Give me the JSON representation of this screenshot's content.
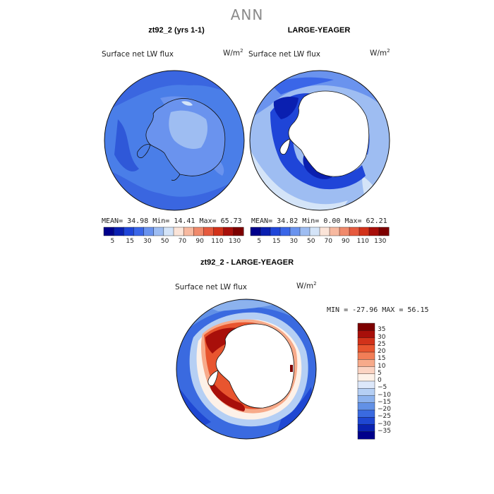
{
  "title": "ANN",
  "panels": [
    {
      "id": "left",
      "title": "zt92_2 (yrs 1-1)",
      "field_label": "Surface net LW flux",
      "units_base": "W/m",
      "units_sup": "2",
      "stats": "MEAN=  34.98  Min=  14.41  Max=  65.73"
    },
    {
      "id": "right",
      "title": "LARGE-YEAGER",
      "field_label": "Surface net LW flux",
      "units_base": "W/m",
      "units_sup": "2",
      "stats": "MEAN=  34.82  Min=   0.00  Max=  62.21"
    },
    {
      "id": "diff",
      "title": "zt92_2 - LARGE-YEAGER",
      "field_label": "Surface net LW flux",
      "units_base": "W/m",
      "units_sup": "2",
      "stats": "MIN = -27.96 MAX =  56.15"
    }
  ],
  "colorbar_top": {
    "colors": [
      "#00008b",
      "#0a1fb0",
      "#1f45d8",
      "#3a66e8",
      "#6a93ee",
      "#9ebdf2",
      "#d4e4f8",
      "#fbe4d8",
      "#f7b9a0",
      "#f08a6c",
      "#e65a3e",
      "#d2321a",
      "#a80f0a",
      "#7d0000"
    ],
    "ticks": [
      "5",
      "15",
      "30",
      "50",
      "70",
      "90",
      "110",
      "130"
    ]
  },
  "colorbar_diff": {
    "colors": [
      "#7d0000",
      "#a80f0a",
      "#d2321a",
      "#e8552f",
      "#f27e57",
      "#f7aa8a",
      "#fbd3c2",
      "#fdf1e8",
      "#dde8fa",
      "#b5cff4",
      "#8cb2ee",
      "#6291e6",
      "#3a6ae0",
      "#1f47d2",
      "#0a22b0",
      "#00008b"
    ],
    "ticks": [
      "35",
      "30",
      "25",
      "20",
      "15",
      "10",
      "5",
      "0",
      "−5",
      "−10",
      "−15",
      "−20",
      "−25",
      "−30",
      "−35"
    ]
  }
}
